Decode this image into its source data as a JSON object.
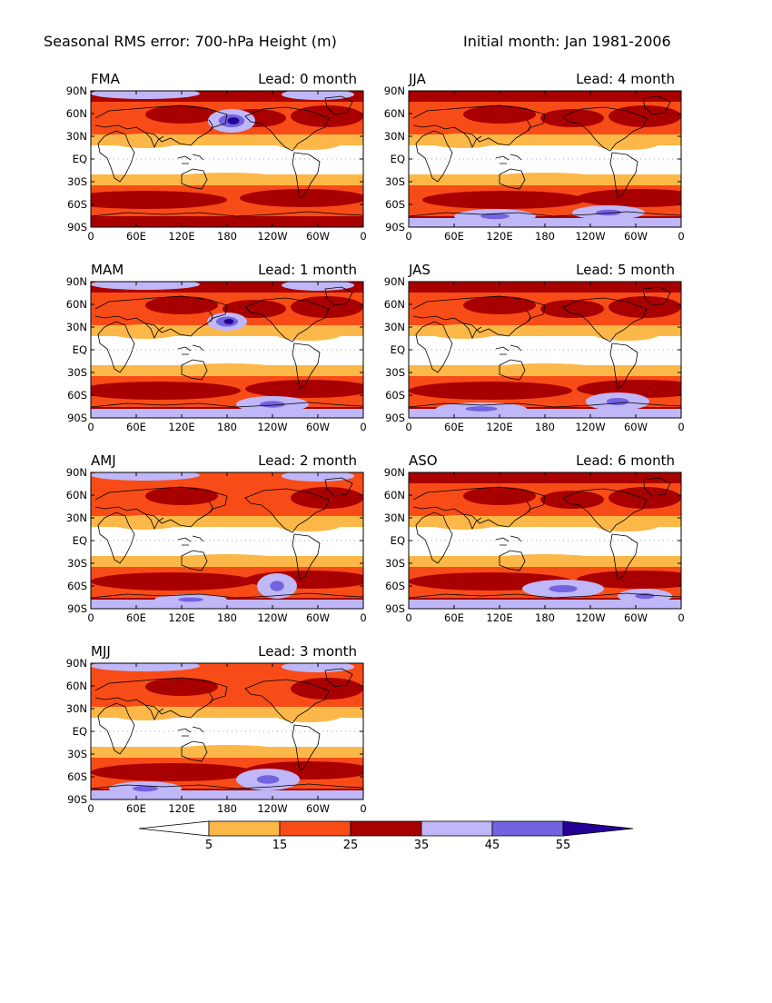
{
  "title_left": "Seasonal RMS error: 700-hPa Height (m)",
  "title_right": "Initial month: Jan 1981-2006",
  "lat_labels": [
    "90N",
    "60N",
    "30N",
    "EQ",
    "30S",
    "60S",
    "90S"
  ],
  "lon_labels": [
    "0",
    "60E",
    "120E",
    "180",
    "120W",
    "60W",
    "0"
  ],
  "panels": [
    {
      "id": "fma",
      "season": "FMA",
      "lead": "Lead: 0 month"
    },
    {
      "id": "jja",
      "season": "JJA",
      "lead": "Lead: 4 month"
    },
    {
      "id": "mam",
      "season": "MAM",
      "lead": "Lead: 1 month"
    },
    {
      "id": "jas",
      "season": "JAS",
      "lead": "Lead: 5 month"
    },
    {
      "id": "amj",
      "season": "AMJ",
      "lead": "Lead: 2 month"
    },
    {
      "id": "aso",
      "season": "ASO",
      "lead": "Lead: 6 month"
    },
    {
      "id": "mjj",
      "season": "MJJ",
      "lead": "Lead: 3 month"
    }
  ],
  "colorbar": {
    "levels": [
      "5",
      "15",
      "25",
      "35",
      "45",
      "55"
    ],
    "colors": [
      "#ffffff",
      "#fbb848",
      "#f84c18",
      "#a80000",
      "#bfb7f7",
      "#7263e0",
      "#240097"
    ]
  }
}
